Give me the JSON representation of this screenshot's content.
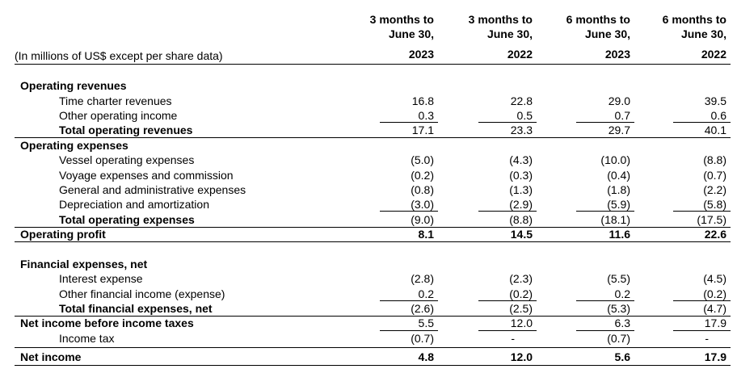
{
  "unit_label": "(In millions of US$ except per share data)",
  "columns": [
    {
      "period": "3 months to",
      "date": "June 30,",
      "year": "2023"
    },
    {
      "period": "3 months to",
      "date": "June 30,",
      "year": "2022"
    },
    {
      "period": "6 months to",
      "date": "June 30,",
      "year": "2023"
    },
    {
      "period": "6 months to",
      "date": "June 30,",
      "year": "2022"
    }
  ],
  "rows": [
    {
      "label": "Operating revenues",
      "style": "section",
      "values": [
        "",
        "",
        "",
        ""
      ]
    },
    {
      "label": "Time charter revenues",
      "style": "item",
      "values": [
        "16.8",
        "22.8",
        "29.0",
        "39.5"
      ]
    },
    {
      "label": "Other operating income",
      "style": "item",
      "values": [
        "0.3",
        "0.5",
        "0.7",
        "0.6"
      ]
    },
    {
      "label": "Total operating revenues",
      "style": "subtotal",
      "values": [
        "17.1",
        "23.3",
        "29.7",
        "40.1"
      ]
    },
    {
      "label": "Operating expenses",
      "style": "section",
      "values": [
        "",
        "",
        "",
        ""
      ]
    },
    {
      "label": "Vessel operating expenses",
      "style": "item",
      "values": [
        "(5.0)",
        "(4.3)",
        "(10.0)",
        "(8.8)"
      ]
    },
    {
      "label": "Voyage expenses and commission",
      "style": "item",
      "values": [
        "(0.2)",
        "(0.3)",
        "(0.4)",
        "(0.7)"
      ]
    },
    {
      "label": "General and administrative expenses",
      "style": "item",
      "values": [
        "(0.8)",
        "(1.3)",
        "(1.8)",
        "(2.2)"
      ]
    },
    {
      "label": "Depreciation and amortization",
      "style": "item",
      "values": [
        "(3.0)",
        "(2.9)",
        "(5.9)",
        "(5.8)"
      ]
    },
    {
      "label": "Total operating expenses",
      "style": "subtotal",
      "values": [
        "(9.0)",
        "(8.8)",
        "(18.1)",
        "(17.5)"
      ]
    },
    {
      "label": "Operating profit",
      "style": "total",
      "values": [
        "8.1",
        "14.5",
        "11.6",
        "22.6"
      ]
    },
    {
      "label": "",
      "style": "blank",
      "values": [
        "",
        "",
        "",
        ""
      ]
    },
    {
      "label": "Financial expenses, net",
      "style": "section",
      "values": [
        "",
        "",
        "",
        ""
      ]
    },
    {
      "label": "Interest expense",
      "style": "item",
      "values": [
        "(2.8)",
        "(2.3)",
        "(5.5)",
        "(4.5)"
      ]
    },
    {
      "label": "Other financial income (expense)",
      "style": "item",
      "values": [
        "0.2",
        "(0.2)",
        "0.2",
        "(0.2)"
      ]
    },
    {
      "label": "Total financial expenses, net",
      "style": "subtotal",
      "values": [
        "(2.6)",
        "(2.5)",
        "(5.3)",
        "(4.7)"
      ]
    },
    {
      "label": "Net income before income taxes",
      "style": "section-values",
      "values": [
        "5.5",
        "12.0",
        "6.3",
        "17.9"
      ]
    },
    {
      "label": "Income tax",
      "style": "item",
      "values": [
        "(0.7)",
        "-",
        "(0.7)",
        "-"
      ]
    },
    {
      "label": "Net income",
      "style": "net",
      "values": [
        "4.8",
        "12.0",
        "5.6",
        "17.9"
      ]
    }
  ]
}
